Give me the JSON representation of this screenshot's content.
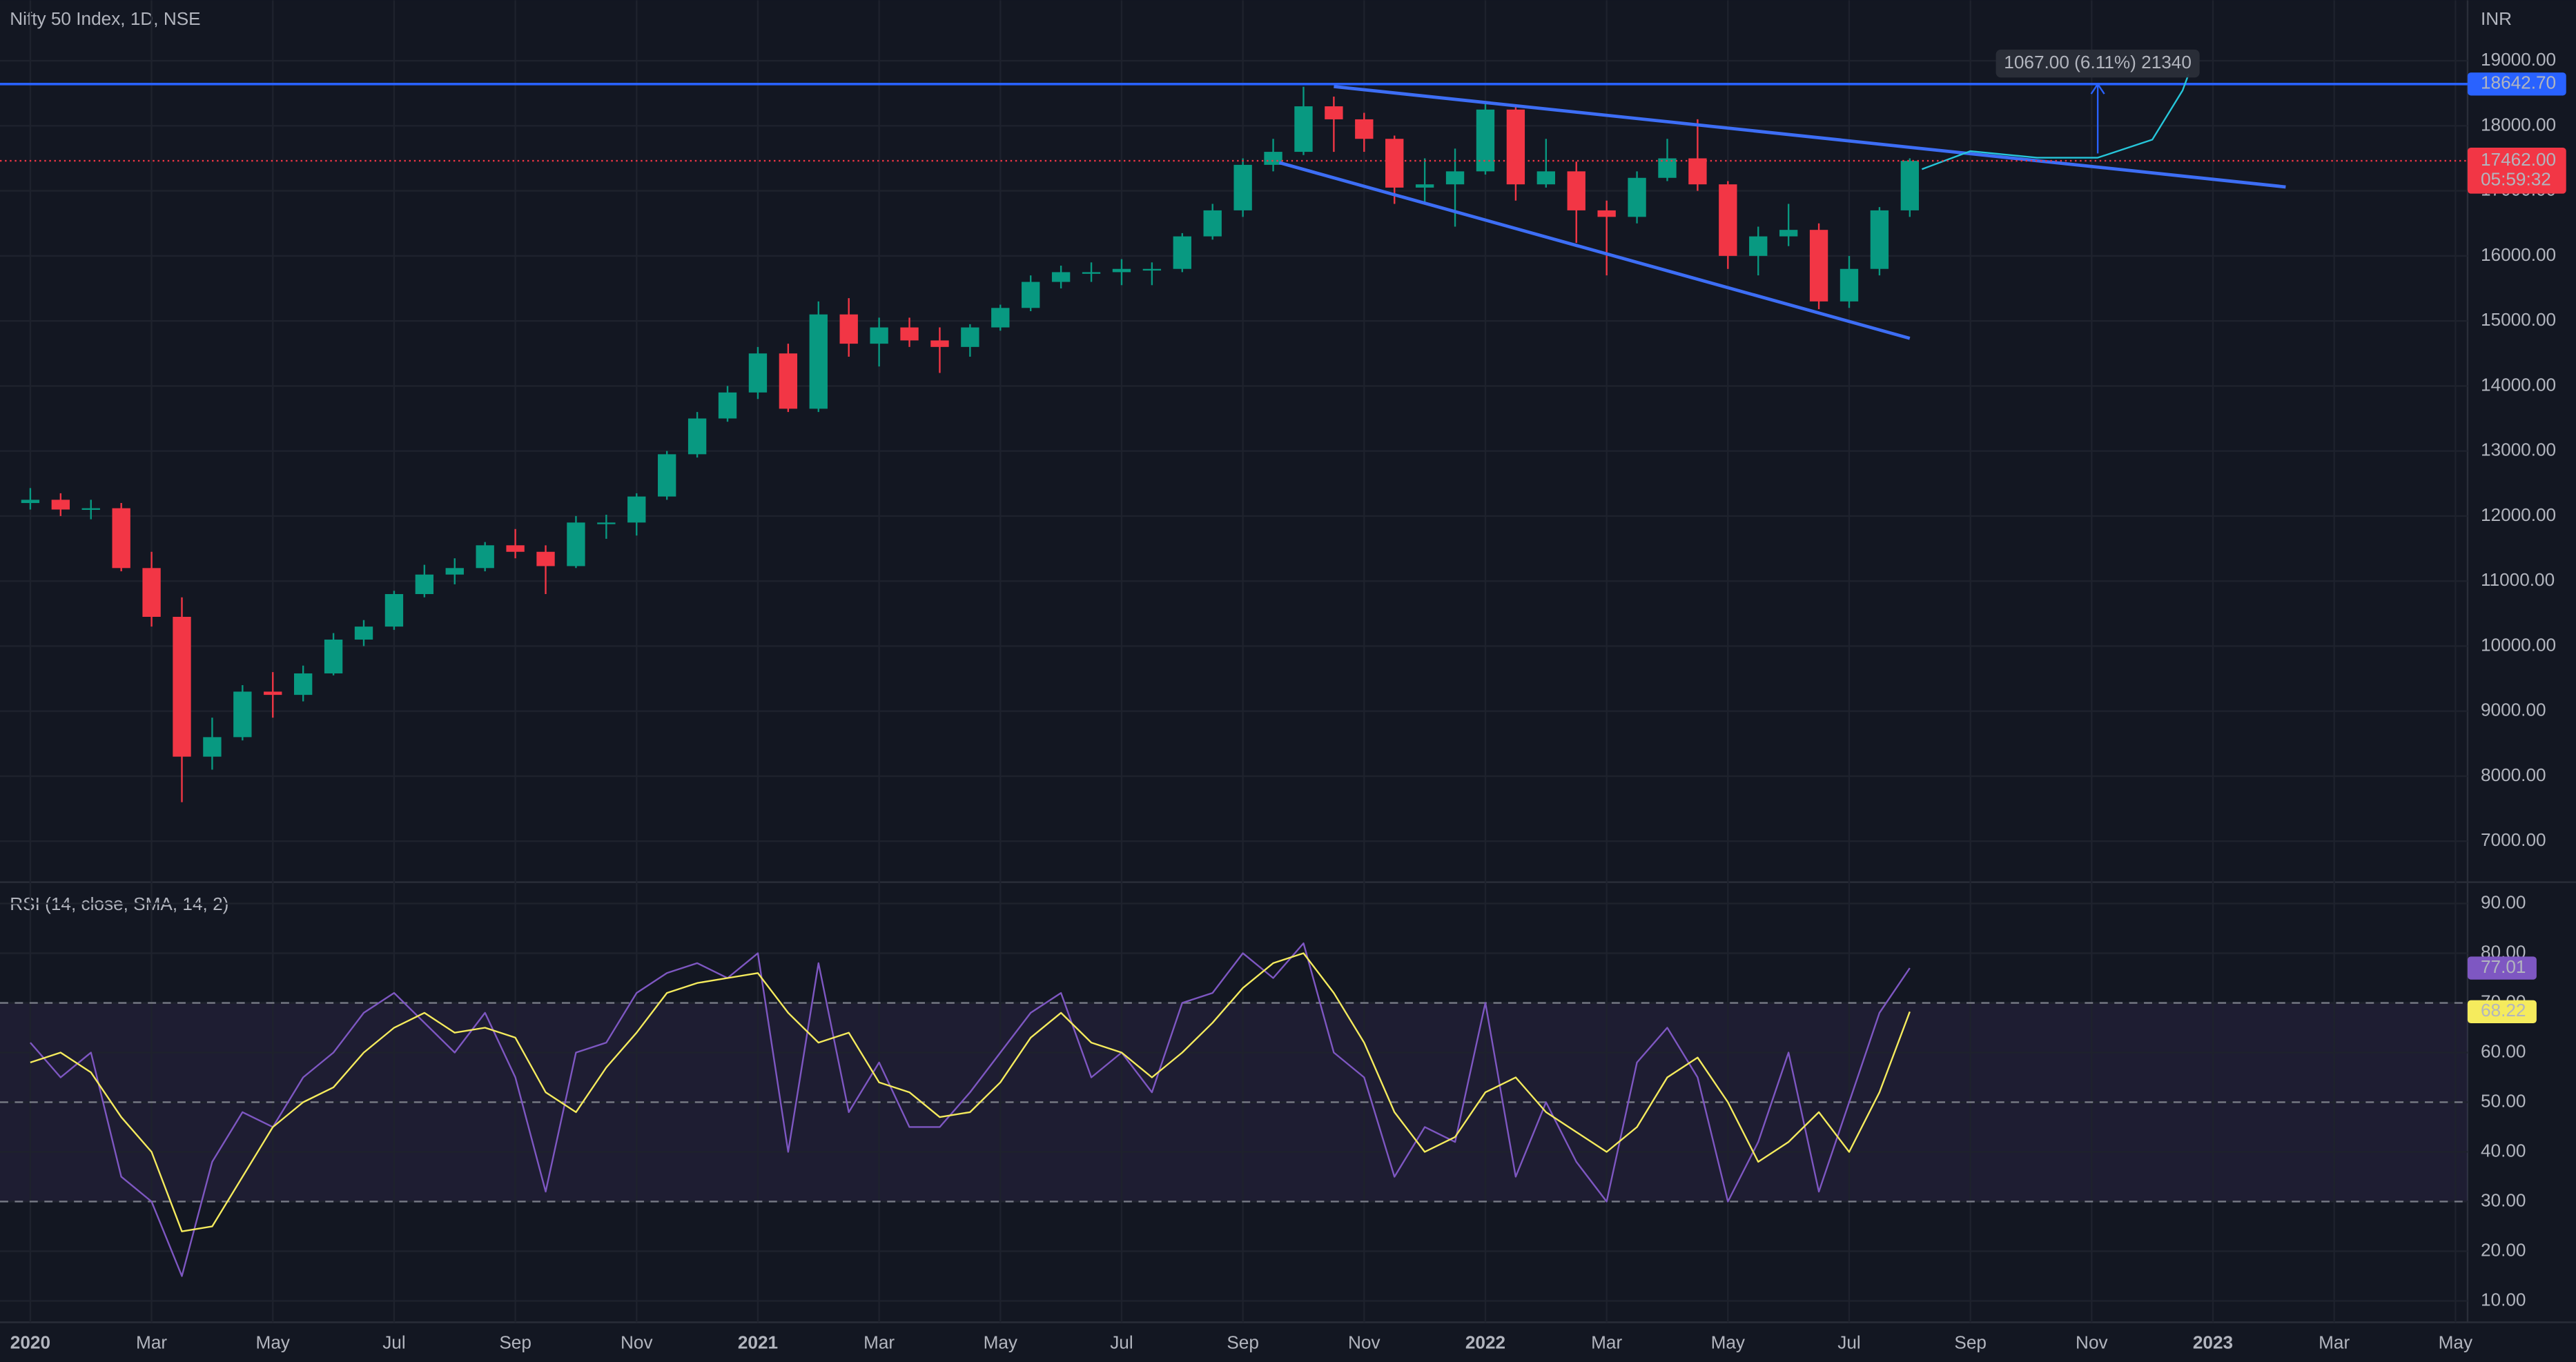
{
  "chart_data": [
    {
      "type": "candlestick",
      "title": "Nifty 50 Index, 1D, NSE",
      "currency": "INR",
      "x": [
        0,
        0.5,
        1,
        1.5,
        2,
        2.5,
        3,
        3.5,
        4,
        4.5,
        5,
        5.5,
        6,
        6.5,
        7,
        7.5,
        8,
        8.5,
        9,
        9.5,
        10,
        10.5,
        11,
        11.5,
        12,
        12.5,
        13,
        13.5,
        14,
        14.5,
        15,
        15.5,
        16,
        16.5,
        17,
        17.5,
        18,
        18.5,
        19,
        19.5,
        20,
        20.5,
        21,
        21.5,
        22,
        22.5,
        23,
        23.5,
        24,
        24.5,
        25,
        25.5,
        26,
        26.5,
        27,
        27.5,
        28,
        28.5,
        29,
        29.5,
        30,
        30.5,
        31
      ],
      "open": [
        12200,
        12250,
        12100,
        12120,
        11200,
        10450,
        8300,
        8600,
        9300,
        9250,
        9580,
        10100,
        10300,
        10800,
        11100,
        11200,
        11550,
        11450,
        11230,
        11900,
        11900,
        12300,
        12950,
        13500,
        13900,
        14500,
        13650,
        15100,
        14650,
        14900,
        14700,
        14600,
        14900,
        15200,
        15600,
        15750,
        15750,
        15800,
        15800,
        16300,
        16700,
        17400,
        17600,
        18300,
        18100,
        17800,
        17050,
        17100,
        17300,
        18250,
        17100,
        17300,
        16700,
        16600,
        17200,
        17500,
        17100,
        16000,
        16300,
        16400,
        15300,
        15800,
        16700
      ],
      "high": [
        12430,
        12350,
        12250,
        12200,
        11450,
        10750,
        8900,
        9400,
        9600,
        9700,
        10200,
        10400,
        10850,
        11250,
        11350,
        11600,
        11800,
        11550,
        12000,
        12020,
        12350,
        13000,
        13600,
        14000,
        14600,
        14650,
        15300,
        15350,
        15050,
        15050,
        14900,
        14950,
        15250,
        15700,
        15850,
        15900,
        15950,
        15900,
        16350,
        16800,
        17500,
        17800,
        18600,
        18450,
        18200,
        17850,
        17500,
        17650,
        18350,
        18300,
        17800,
        17450,
        16850,
        17300,
        17800,
        18100,
        17150,
        16450,
        16800,
        16500,
        16000,
        16750,
        17500
      ],
      "low": [
        12100,
        12000,
        11950,
        11150,
        10300,
        7600,
        8100,
        8550,
        8900,
        9150,
        9550,
        10000,
        10250,
        10750,
        10950,
        11150,
        11350,
        10800,
        11200,
        11650,
        11700,
        12250,
        12900,
        13450,
        13800,
        13600,
        13600,
        14450,
        14300,
        14600,
        14200,
        14450,
        14850,
        15150,
        15500,
        15600,
        15550,
        15550,
        15750,
        16250,
        16600,
        17300,
        17550,
        17600,
        17600,
        16800,
        16800,
        16450,
        17250,
        16850,
        17050,
        16200,
        15700,
        16500,
        17150,
        17000,
        15800,
        15700,
        16150,
        15180,
        15200,
        15700,
        16600
      ],
      "close": [
        12250,
        12100,
        12120,
        11200,
        10450,
        8300,
        8600,
        9300,
        9250,
        9580,
        10100,
        10300,
        10800,
        11100,
        11200,
        11550,
        11450,
        11230,
        11900,
        11900,
        12300,
        12950,
        13500,
        13900,
        14500,
        13650,
        15100,
        14650,
        14900,
        14700,
        14600,
        14900,
        15200,
        15600,
        15750,
        15750,
        15800,
        15800,
        16300,
        16700,
        17400,
        17600,
        18300,
        18100,
        17800,
        17050,
        17100,
        17300,
        18250,
        17100,
        17300,
        16700,
        16600,
        17200,
        17500,
        17100,
        16000,
        16300,
        16400,
        15300,
        15800,
        16700,
        17462
      ],
      "up_color": "#089981",
      "down_color": "#f23645",
      "xlim": [
        -0.5,
        40.2
      ],
      "xticks": [
        {
          "value": 0,
          "label": "2020"
        },
        {
          "value": 2,
          "label": "Mar"
        },
        {
          "value": 4,
          "label": "May"
        },
        {
          "value": 6,
          "label": "Jul"
        },
        {
          "value": 8,
          "label": "Sep"
        },
        {
          "value": 10,
          "label": "Nov"
        },
        {
          "value": 12,
          "label": "2021"
        },
        {
          "value": 14,
          "label": "Mar"
        },
        {
          "value": 16,
          "label": "May"
        },
        {
          "value": 18,
          "label": "Jul"
        },
        {
          "value": 20,
          "label": "Sep"
        },
        {
          "value": 22,
          "label": "Nov"
        },
        {
          "value": 24,
          "label": "2022"
        },
        {
          "value": 26,
          "label": "Mar"
        },
        {
          "value": 28,
          "label": "May"
        },
        {
          "value": 30,
          "label": "Jul"
        },
        {
          "value": 32,
          "label": "Sep"
        },
        {
          "value": 34,
          "label": "Nov"
        },
        {
          "value": 36,
          "label": "2023"
        },
        {
          "value": 38,
          "label": "Mar"
        },
        {
          "value": 40,
          "label": "May"
        }
      ],
      "ylim": [
        6370,
        19930
      ],
      "yticks": [
        {
          "value": 7000,
          "label": "7000.00"
        },
        {
          "value": 8000,
          "label": "8000.00"
        },
        {
          "value": 9000,
          "label": "9000.00"
        },
        {
          "value": 10000,
          "label": "10000.00"
        },
        {
          "value": 11000,
          "label": "11000.00"
        },
        {
          "value": 12000,
          "label": "12000.00"
        },
        {
          "value": 13000,
          "label": "13000.00"
        },
        {
          "value": 14000,
          "label": "14000.00"
        },
        {
          "value": 15000,
          "label": "15000.00"
        },
        {
          "value": 16000,
          "label": "16000.00"
        },
        {
          "value": 17000,
          "label": "17000.00"
        },
        {
          "value": 18000,
          "label": "18000.00"
        },
        {
          "value": 19000,
          "label": "19000.00"
        }
      ],
      "grid": true,
      "resistance": {
        "value": 18642.7,
        "label": "18642.70",
        "color": "#2962ff"
      },
      "last_price": {
        "value": 17462,
        "label": "17462.00",
        "countdown": "05:59:32",
        "color": "#f23645"
      },
      "trendlines": [
        {
          "x": [
            21.5,
            37.2
          ],
          "y": [
            18604,
            17060
          ],
          "color": "#3d6ef5"
        },
        {
          "x": [
            20.6,
            31.0
          ],
          "y": [
            17434,
            14732
          ],
          "color": "#3d6ef5"
        }
      ],
      "projection": {
        "x": [
          31.2,
          32.0,
          33.1,
          34.1,
          35.0,
          35.5,
          35.6
        ],
        "y": [
          17333,
          17611,
          17510,
          17510,
          17788,
          18545,
          18798
        ],
        "color": "#26c6da"
      },
      "measure": {
        "x": 34.1,
        "from": 17575,
        "to": 18642,
        "label": "1067.00 (6.11%) 21340",
        "color": "#2962ff"
      }
    },
    {
      "type": "line",
      "title": "RSI (14, close, SMA, 14, 2)",
      "x": [
        0,
        0.5,
        1,
        1.5,
        2,
        2.5,
        3,
        3.5,
        4,
        4.5,
        5,
        5.5,
        6,
        6.5,
        7,
        7.5,
        8,
        8.5,
        9,
        9.5,
        10,
        10.5,
        11,
        11.5,
        12,
        12.5,
        13,
        13.5,
        14,
        14.5,
        15,
        15.5,
        16,
        16.5,
        17,
        17.5,
        18,
        18.5,
        19,
        19.5,
        20,
        20.5,
        21,
        21.5,
        22,
        22.5,
        23,
        23.5,
        24,
        24.5,
        25,
        25.5,
        26,
        26.5,
        27,
        27.5,
        28,
        28.5,
        29,
        29.5,
        30,
        30.5,
        31
      ],
      "series": [
        {
          "name": "RSI",
          "color": "#7e57c2",
          "last_label": "77.01",
          "values": [
            62,
            55,
            60,
            35,
            30,
            15,
            38,
            48,
            45,
            55,
            60,
            68,
            72,
            66,
            60,
            68,
            55,
            32,
            60,
            62,
            72,
            76,
            78,
            75,
            80,
            40,
            78,
            48,
            58,
            45,
            45,
            52,
            60,
            68,
            72,
            55,
            60,
            52,
            70,
            72,
            80,
            75,
            82,
            60,
            55,
            35,
            45,
            42,
            70,
            35,
            50,
            38,
            30,
            58,
            65,
            55,
            30,
            42,
            60,
            32,
            50,
            68,
            77.01
          ]
        },
        {
          "name": "SMA",
          "color": "#f5eb5d",
          "last_label": "68.22",
          "values": [
            58,
            60,
            56,
            47,
            40,
            24,
            25,
            35,
            45,
            50,
            53,
            60,
            65,
            68,
            64,
            65,
            63,
            52,
            48,
            57,
            64,
            72,
            74,
            75,
            76,
            68,
            62,
            64,
            54,
            52,
            47,
            48,
            54,
            63,
            68,
            62,
            60,
            55,
            60,
            66,
            73,
            78,
            80,
            72,
            62,
            48,
            40,
            43,
            52,
            55,
            48,
            44,
            40,
            45,
            55,
            59,
            50,
            38,
            42,
            48,
            40,
            52,
            68.22
          ]
        }
      ],
      "ylim": [
        5.7,
        94.3
      ],
      "yticks": [
        {
          "value": 10,
          "label": "10.00"
        },
        {
          "value": 20,
          "label": "20.00"
        },
        {
          "value": 30,
          "label": "30.00"
        },
        {
          "value": 40,
          "label": "40.00"
        },
        {
          "value": 50,
          "label": "50.00"
        },
        {
          "value": 60,
          "label": "60.00"
        },
        {
          "value": 70,
          "label": "70.00"
        },
        {
          "value": 80,
          "label": "80.00"
        },
        {
          "value": 90,
          "label": "90.00"
        }
      ],
      "levels": [
        70,
        50,
        30
      ],
      "band_color": "#7e57c2"
    }
  ]
}
